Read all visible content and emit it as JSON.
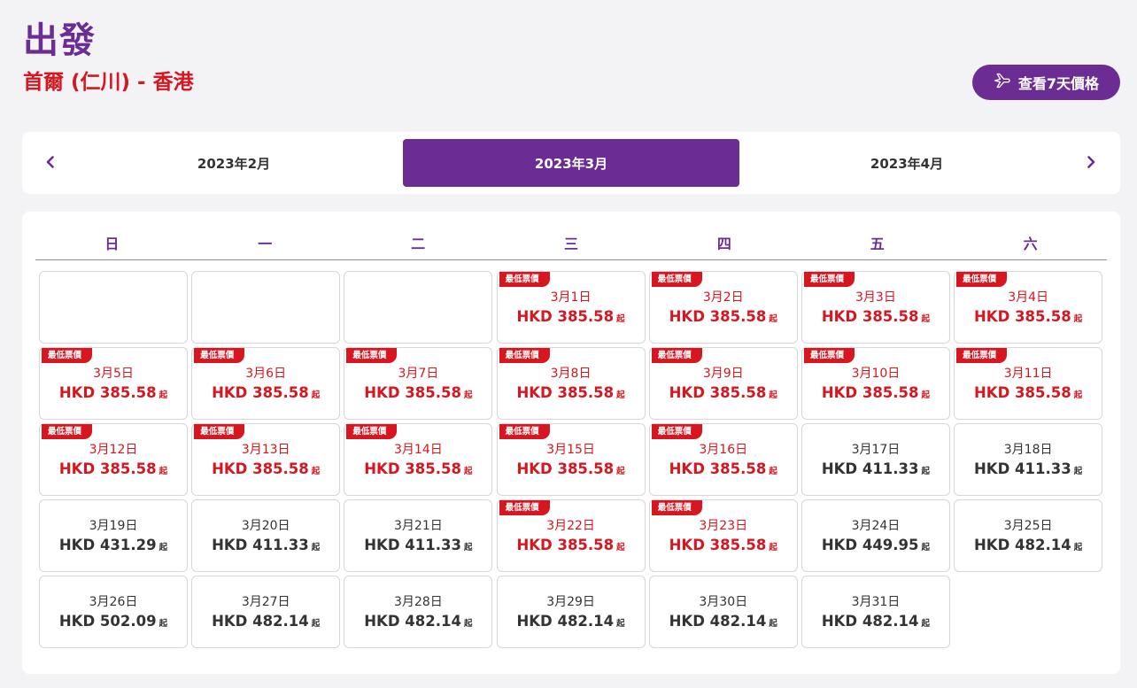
{
  "header": {
    "title": "出發",
    "route": "首爾 (仁川) - 香港",
    "seven_day_label": "查看7天價格"
  },
  "months": [
    "2023年2月",
    "2023年3月",
    "2023年4月"
  ],
  "selected_month": "2023年3月",
  "weekdays": [
    "日",
    "一",
    "二",
    "三",
    "四",
    "五",
    "六"
  ],
  "badge_text": "最低票價",
  "from_suffix": "起",
  "colors": {
    "brand": "#6b2d94",
    "lowest": "#d8161f"
  },
  "leading_blanks": 3,
  "days": [
    {
      "date": "3月1日",
      "price": "HKD 385.58",
      "lowest": true
    },
    {
      "date": "3月2日",
      "price": "HKD 385.58",
      "lowest": true
    },
    {
      "date": "3月3日",
      "price": "HKD 385.58",
      "lowest": true
    },
    {
      "date": "3月4日",
      "price": "HKD 385.58",
      "lowest": true
    },
    {
      "date": "3月5日",
      "price": "HKD 385.58",
      "lowest": true
    },
    {
      "date": "3月6日",
      "price": "HKD 385.58",
      "lowest": true
    },
    {
      "date": "3月7日",
      "price": "HKD 385.58",
      "lowest": true
    },
    {
      "date": "3月8日",
      "price": "HKD 385.58",
      "lowest": true
    },
    {
      "date": "3月9日",
      "price": "HKD 385.58",
      "lowest": true
    },
    {
      "date": "3月10日",
      "price": "HKD 385.58",
      "lowest": true
    },
    {
      "date": "3月11日",
      "price": "HKD 385.58",
      "lowest": true
    },
    {
      "date": "3月12日",
      "price": "HKD 385.58",
      "lowest": true
    },
    {
      "date": "3月13日",
      "price": "HKD 385.58",
      "lowest": true
    },
    {
      "date": "3月14日",
      "price": "HKD 385.58",
      "lowest": true
    },
    {
      "date": "3月15日",
      "price": "HKD 385.58",
      "lowest": true
    },
    {
      "date": "3月16日",
      "price": "HKD 385.58",
      "lowest": true
    },
    {
      "date": "3月17日",
      "price": "HKD 411.33",
      "lowest": false
    },
    {
      "date": "3月18日",
      "price": "HKD 411.33",
      "lowest": false
    },
    {
      "date": "3月19日",
      "price": "HKD 431.29",
      "lowest": false
    },
    {
      "date": "3月20日",
      "price": "HKD 411.33",
      "lowest": false
    },
    {
      "date": "3月21日",
      "price": "HKD 411.33",
      "lowest": false
    },
    {
      "date": "3月22日",
      "price": "HKD 385.58",
      "lowest": true
    },
    {
      "date": "3月23日",
      "price": "HKD 385.58",
      "lowest": true
    },
    {
      "date": "3月24日",
      "price": "HKD 449.95",
      "lowest": false
    },
    {
      "date": "3月25日",
      "price": "HKD 482.14",
      "lowest": false
    },
    {
      "date": "3月26日",
      "price": "HKD 502.09",
      "lowest": false
    },
    {
      "date": "3月27日",
      "price": "HKD 482.14",
      "lowest": false
    },
    {
      "date": "3月28日",
      "price": "HKD 482.14",
      "lowest": false
    },
    {
      "date": "3月29日",
      "price": "HKD 482.14",
      "lowest": false
    },
    {
      "date": "3月30日",
      "price": "HKD 482.14",
      "lowest": false
    },
    {
      "date": "3月31日",
      "price": "HKD 482.14",
      "lowest": false
    }
  ]
}
